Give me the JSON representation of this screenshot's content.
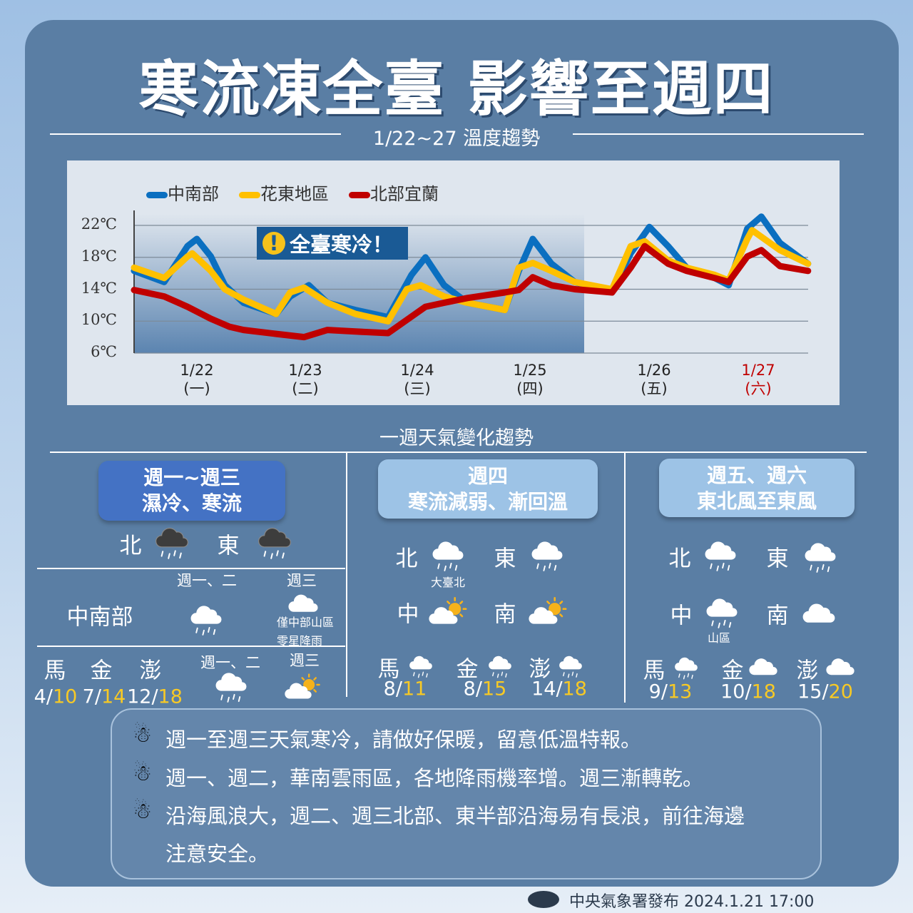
{
  "title": "寒流凍全臺 影響至週四",
  "subtitle": "1/22~27 溫度趨勢",
  "chart_data": {
    "type": "line",
    "title": "1/22~27 溫度趨勢",
    "annotation": "全臺寒冷！",
    "y_unit": "℃",
    "ylim": [
      6,
      22
    ],
    "y_ticks": [
      "22℃",
      "18℃",
      "14℃",
      "10℃",
      "6℃"
    ],
    "x_ticks": [
      {
        "date": "1/22",
        "day": "(一)"
      },
      {
        "date": "1/23",
        "day": "(二)"
      },
      {
        "date": "1/24",
        "day": "(三)"
      },
      {
        "date": "1/25",
        "day": "(四)"
      },
      {
        "date": "1/26",
        "day": "(五)"
      },
      {
        "date": "1/27",
        "day": "(六)"
      }
    ],
    "grid": true,
    "legend": "top-left",
    "series": [
      {
        "name": "中南部",
        "color": "#0b6fc0",
        "points": [
          [
            "1/21 22",
            16.3
          ],
          [
            "1/22 05",
            14.9
          ],
          [
            "1/22 10",
            19.4
          ],
          [
            "1/22 12",
            20.3
          ],
          [
            "1/22 15",
            18.1
          ],
          [
            "1/22 18",
            14.5
          ],
          [
            "1/22 22",
            12.3
          ],
          [
            "1/23 05",
            10.9
          ],
          [
            "1/23 08",
            13.1
          ],
          [
            "1/23 12",
            14.5
          ],
          [
            "1/23 16",
            12.3
          ],
          [
            "1/23 22",
            11.4
          ],
          [
            "1/24 05",
            10.5
          ],
          [
            "1/24 10",
            15.8
          ],
          [
            "1/24 13",
            18.0
          ],
          [
            "1/24 17",
            14.5
          ],
          [
            "1/24 22",
            12.3
          ],
          [
            "1/25 06",
            11.4
          ],
          [
            "1/25 09",
            16.3
          ],
          [
            "1/25 12",
            20.3
          ],
          [
            "1/25 16",
            17.2
          ],
          [
            "1/25 21",
            14.9
          ],
          [
            "1/26 05",
            13.6
          ],
          [
            "1/26 09",
            18.5
          ],
          [
            "1/26 13",
            21.8
          ],
          [
            "1/26 17",
            19.4
          ],
          [
            "1/26 21",
            16.7
          ],
          [
            "1/27 03",
            15.4
          ],
          [
            "1/27 06",
            14.5
          ],
          [
            "1/27 10",
            21.6
          ],
          [
            "1/27 13",
            23.1
          ],
          [
            "1/27 17",
            19.8
          ],
          [
            "1/27 23",
            17.2
          ]
        ]
      },
      {
        "name": "花東地區",
        "color": "#ffc000",
        "points": [
          [
            "1/21 22",
            16.7
          ],
          [
            "1/22 05",
            15.4
          ],
          [
            "1/22 10",
            18.1
          ],
          [
            "1/22 11",
            18.5
          ],
          [
            "1/22 15",
            16.3
          ],
          [
            "1/22 18",
            14.0
          ],
          [
            "1/22 22",
            12.7
          ],
          [
            "1/23 05",
            10.9
          ],
          [
            "1/23 08",
            13.6
          ],
          [
            "1/23 11",
            14.2
          ],
          [
            "1/23 16",
            12.3
          ],
          [
            "1/23 22",
            10.9
          ],
          [
            "1/24 05",
            10.0
          ],
          [
            "1/24 09",
            14.0
          ],
          [
            "1/24 12",
            14.5
          ],
          [
            "1/24 17",
            13.1
          ],
          [
            "1/24 22",
            12.3
          ],
          [
            "1/25 06",
            11.4
          ],
          [
            "1/25 09",
            16.7
          ],
          [
            "1/25 12",
            17.3
          ],
          [
            "1/25 16",
            16.3
          ],
          [
            "1/25 21",
            14.9
          ],
          [
            "1/26 05",
            14.0
          ],
          [
            "1/26 09",
            19.4
          ],
          [
            "1/26 12",
            20.0
          ],
          [
            "1/26 17",
            17.6
          ],
          [
            "1/26 21",
            16.7
          ],
          [
            "1/27 03",
            15.8
          ],
          [
            "1/27 06",
            15.1
          ],
          [
            "1/27 10",
            20.3
          ],
          [
            "1/27 11",
            21.4
          ],
          [
            "1/27 17",
            18.9
          ],
          [
            "1/27 23",
            17.2
          ]
        ]
      },
      {
        "name": "北部宜蘭",
        "color": "#c00000",
        "points": [
          [
            "1/21 22",
            13.9
          ],
          [
            "1/22 05",
            13.1
          ],
          [
            "1/22 10",
            11.8
          ],
          [
            "1/22 15",
            10.3
          ],
          [
            "1/22 19",
            9.3
          ],
          [
            "1/22 22",
            8.9
          ],
          [
            "1/23 05",
            8.4
          ],
          [
            "1/23 11",
            8.0
          ],
          [
            "1/23 16",
            8.9
          ],
          [
            "1/23 22",
            8.7
          ],
          [
            "1/24 05",
            8.5
          ],
          [
            "1/24 13",
            11.8
          ],
          [
            "1/24 17",
            12.3
          ],
          [
            "1/24 22",
            12.9
          ],
          [
            "1/25 06",
            13.6
          ],
          [
            "1/25 09",
            13.9
          ],
          [
            "1/25 12",
            15.5
          ],
          [
            "1/25 16",
            14.5
          ],
          [
            "1/25 21",
            14.0
          ],
          [
            "1/26 05",
            13.6
          ],
          [
            "1/26 09",
            16.7
          ],
          [
            "1/26 12",
            19.4
          ],
          [
            "1/26 17",
            17.2
          ],
          [
            "1/26 21",
            16.3
          ],
          [
            "1/27 03",
            15.4
          ],
          [
            "1/27 06",
            14.9
          ],
          [
            "1/27 10",
            18.1
          ],
          [
            "1/27 13",
            18.9
          ],
          [
            "1/27 17",
            16.9
          ],
          [
            "1/27 23",
            16.3
          ]
        ]
      }
    ]
  },
  "section_title": "一週天氣變化趨勢",
  "col1": {
    "badge1": "週一~週三",
    "badge2": "濕冷、寒流",
    "badge_color": "#4472c4",
    "north": "北",
    "east": "東",
    "period_a": "週一、二",
    "period_b": "週三",
    "central_south": "中南部",
    "note1": "僅中部山區",
    "note2": "零星降雨",
    "period_c": "週一、二",
    "period_d": "週三",
    "islands": [
      {
        "name": "馬",
        "low": "4/",
        "high": "10"
      },
      {
        "name": "金",
        "low": "7/",
        "high": "14"
      },
      {
        "name": "澎",
        "low": "12/",
        "high": "18"
      }
    ]
  },
  "col2": {
    "badge1": "週四",
    "badge2": "寒流減弱、漸回溫",
    "badge_color": "#9dc3e6",
    "north": "北",
    "east": "東",
    "central": "中",
    "south": "南",
    "north_note": "大臺北",
    "islands": [
      {
        "name": "馬",
        "low": "8/",
        "high": "11"
      },
      {
        "name": "金",
        "low": "8/",
        "high": "15"
      },
      {
        "name": "澎",
        "low": "14/",
        "high": "18"
      }
    ]
  },
  "col3": {
    "badge1": "週五、週六",
    "badge2": "東北風至東風",
    "badge_color": "#9dc3e6",
    "north": "北",
    "east": "東",
    "central": "中",
    "south": "南",
    "central_note": "山區",
    "islands": [
      {
        "name": "馬",
        "low": "9/",
        "high": "13"
      },
      {
        "name": "金",
        "low": "10/",
        "high": "18"
      },
      {
        "name": "澎",
        "low": "15/",
        "high": "20"
      }
    ]
  },
  "notes": [
    "週一至週三天氣寒冷，請做好保暖，留意低溫特報。",
    "週一、週二，華南雲雨區，各地降雨機率增。週三漸轉乾。",
    "沿海風浪大，週二、週三北部、東半部沿海易有長浪，前往海邊",
    "注意安全。"
  ],
  "footer": "中央氣象署發布 2024.1.21 17:00"
}
